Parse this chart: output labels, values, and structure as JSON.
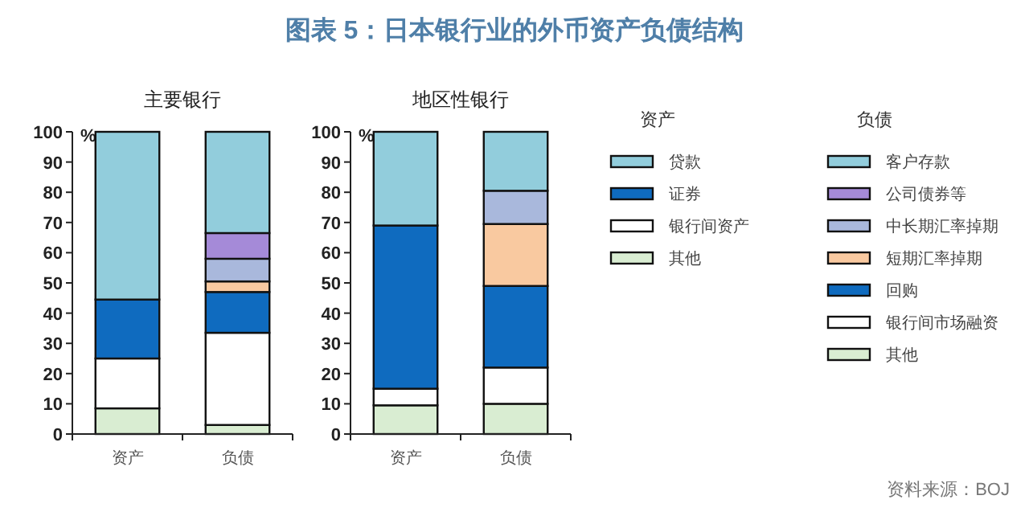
{
  "chart_data": [
    {
      "type": "other",
      "title": "图表 5：日本银行业的外币资产负债结构"
    },
    {
      "type": "bar",
      "stacked": true,
      "subtitle": "主要银行",
      "ylabel": "%",
      "categories": [
        "资产",
        "负债"
      ],
      "ylim": [
        0,
        100
      ],
      "yticks": [
        0,
        10,
        20,
        30,
        40,
        50,
        60,
        70,
        80,
        90,
        100
      ],
      "series": [
        {
          "color": "#d9edd2",
          "values": [
            8.5,
            null
          ]
        },
        {
          "color": "#ffffff",
          "values": [
            16.5,
            null
          ]
        },
        {
          "color": "#0f6bbf",
          "values": [
            19.5,
            null
          ]
        },
        {
          "color": "#92cddc",
          "values": [
            55.5,
            null
          ]
        },
        {
          "color": "#d9edd2",
          "values": [
            null,
            3
          ]
        },
        {
          "color": "#ffffff",
          "values": [
            null,
            30.5
          ]
        },
        {
          "color": "#0f6bbf",
          "values": [
            null,
            13.5
          ]
        },
        {
          "color": "#f9c9a0",
          "values": [
            null,
            3.5
          ]
        },
        {
          "color": "#a9b8dc",
          "values": [
            null,
            7.5
          ]
        },
        {
          "color": "#a58ad8",
          "values": [
            null,
            8.5
          ]
        },
        {
          "color": "#92cddc",
          "values": [
            null,
            33.5
          ]
        }
      ]
    },
    {
      "type": "bar",
      "stacked": true,
      "subtitle": "地区性银行",
      "ylabel": "%",
      "categories": [
        "资产",
        "负债"
      ],
      "ylim": [
        0,
        100
      ],
      "yticks": [
        0,
        10,
        20,
        30,
        40,
        50,
        60,
        70,
        80,
        90,
        100
      ],
      "legend": "right",
      "annotations": [
        "资产",
        "负债",
        "资料来源：BOJ"
      ],
      "series": [
        {
          "name": "其他",
          "color": "#d9edd2",
          "values": [
            9.5,
            null
          ]
        },
        {
          "name": "银行间资产",
          "color": "#ffffff",
          "values": [
            5.5,
            null
          ]
        },
        {
          "name": "证券",
          "color": "#0f6bbf",
          "values": [
            54,
            null
          ]
        },
        {
          "name": "贷款",
          "color": "#92cddc",
          "values": [
            31,
            null
          ]
        },
        {
          "name": "其他",
          "color": "#d9edd2",
          "values": [
            null,
            10
          ]
        },
        {
          "name": "银行间市场融资",
          "color": "#ffffff",
          "values": [
            null,
            12
          ]
        },
        {
          "name": "回购",
          "color": "#0f6bbf",
          "values": [
            null,
            27
          ]
        },
        {
          "name": "短期汇率掉期",
          "color": "#f9c9a0",
          "values": [
            null,
            20.5
          ]
        },
        {
          "name": "中长期汇率掉期",
          "color": "#a9b8dc",
          "values": [
            null,
            11
          ]
        },
        {
          "name": "公司债券等",
          "color": "#a58ad8",
          "values": [
            null,
            0
          ]
        },
        {
          "name": "客户存款",
          "color": "#92cddc",
          "values": [
            null,
            19.5
          ]
        }
      ]
    }
  ]
}
